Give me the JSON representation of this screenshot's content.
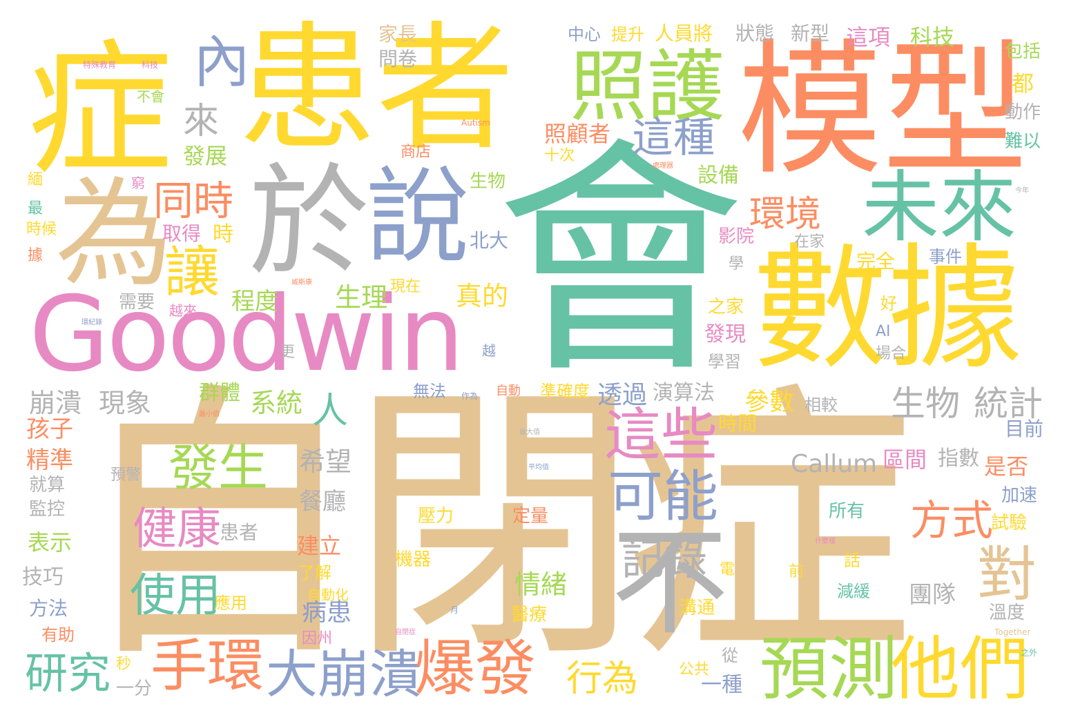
{
  "palette": {
    "green": "#66c2a5",
    "orange": "#fc8d62",
    "blue": "#8da0cb",
    "pink": "#e78ac3",
    "lime": "#a6d854",
    "yellow": "#ffd92f",
    "tan": "#e5c494",
    "gray": "#b3b3b3"
  },
  "words": [
    {
      "text": "自閉症",
      "color": "tan",
      "weight": 1.0
    },
    {
      "text": "會",
      "color": "green",
      "weight": 0.95
    },
    {
      "text": "模型",
      "color": "orange",
      "weight": 0.85
    },
    {
      "text": "患者",
      "color": "yellow",
      "weight": 0.85
    },
    {
      "text": "數據",
      "color": "yellow",
      "weight": 0.8
    },
    {
      "text": "症",
      "color": "yellow",
      "weight": 0.8
    },
    {
      "text": "Goodwin",
      "color": "pink",
      "weight": 0.75
    },
    {
      "text": "於",
      "color": "gray",
      "weight": 0.7
    },
    {
      "text": "說",
      "color": "blue",
      "weight": 0.7
    },
    {
      "text": "為",
      "color": "tan",
      "weight": 0.7
    },
    {
      "text": "不",
      "color": "gray",
      "weight": 0.7
    },
    {
      "text": "照護",
      "color": "lime",
      "weight": 0.6
    },
    {
      "text": "未來",
      "color": "green",
      "weight": 0.6
    },
    {
      "text": "預測",
      "color": "lime",
      "weight": 0.55
    },
    {
      "text": "他們",
      "color": "yellow",
      "weight": 0.55
    },
    {
      "text": "大崩潰",
      "color": "blue",
      "weight": 0.5
    },
    {
      "text": "爆發",
      "color": "orange",
      "weight": 0.5
    },
    {
      "text": "手環",
      "color": "orange",
      "weight": 0.5
    },
    {
      "text": "這些",
      "color": "pink",
      "weight": 0.5
    },
    {
      "text": "可能",
      "color": "blue",
      "weight": 0.5
    },
    {
      "text": "內",
      "color": "blue",
      "weight": 0.45
    },
    {
      "text": "發生",
      "color": "lime",
      "weight": 0.45
    },
    {
      "text": "健康",
      "color": "pink",
      "weight": 0.45
    },
    {
      "text": "使用",
      "color": "green",
      "weight": 0.45
    },
    {
      "text": "對",
      "color": "tan",
      "weight": 0.45
    },
    {
      "text": "讓",
      "color": "yellow",
      "weight": 0.45
    },
    {
      "text": "研究",
      "color": "green",
      "weight": 0.4
    },
    {
      "text": "記錄",
      "color": "gray",
      "weight": 0.4
    },
    {
      "text": "方式",
      "color": "orange",
      "weight": 0.4
    },
    {
      "text": "環境",
      "color": "orange",
      "weight": 0.4
    },
    {
      "text": "同時",
      "color": "orange",
      "weight": 0.38
    },
    {
      "text": "這種",
      "color": "blue",
      "weight": 0.38
    },
    {
      "text": "生物",
      "color": "gray",
      "weight": 0.38
    },
    {
      "text": "統計",
      "color": "gray",
      "weight": 0.38
    },
    {
      "text": "人",
      "color": "green",
      "weight": 0.35
    },
    {
      "text": "行為",
      "color": "yellow",
      "weight": 0.33
    },
    {
      "text": "來",
      "color": "gray",
      "weight": 0.33
    },
    {
      "text": "崩潰",
      "color": "gray",
      "weight": 0.3
    },
    {
      "text": "現象",
      "color": "gray",
      "weight": 0.3
    },
    {
      "text": "Callum",
      "color": "gray",
      "weight": 0.3
    },
    {
      "text": "希望",
      "color": "gray",
      "weight": 0.3
    },
    {
      "text": "參數",
      "color": "yellow",
      "weight": 0.3
    },
    {
      "text": "系統",
      "color": "lime",
      "weight": 0.3
    },
    {
      "text": "透過",
      "color": "blue",
      "weight": 0.3
    },
    {
      "text": "生理",
      "color": "lime",
      "weight": 0.3
    },
    {
      "text": "真的",
      "color": "yellow",
      "weight": 0.3
    },
    {
      "text": "情緒",
      "color": "lime",
      "weight": 0.3
    },
    {
      "text": "病患",
      "color": "blue",
      "weight": 0.3
    },
    {
      "text": "團隊",
      "color": "gray",
      "weight": 0.28
    },
    {
      "text": "區間",
      "color": "pink",
      "weight": 0.28
    },
    {
      "text": "照顧者",
      "color": "orange",
      "weight": 0.28
    },
    {
      "text": "程度",
      "color": "lime",
      "weight": 0.28
    },
    {
      "text": "孩子",
      "color": "orange",
      "weight": 0.28
    },
    {
      "text": "精準",
      "color": "orange",
      "weight": 0.28
    },
    {
      "text": "群體",
      "color": "lime",
      "weight": 0.26
    },
    {
      "text": "演算法",
      "color": "gray",
      "weight": 0.26
    },
    {
      "text": "發展",
      "color": "lime",
      "weight": 0.26
    },
    {
      "text": "設備",
      "color": "lime",
      "weight": 0.26
    },
    {
      "text": "發現",
      "color": "pink",
      "weight": 0.26
    },
    {
      "text": "餐廳",
      "color": "gray",
      "weight": 0.26
    },
    {
      "text": "建立",
      "color": "orange",
      "weight": 0.26
    },
    {
      "text": "表示",
      "color": "lime",
      "weight": 0.26
    },
    {
      "text": "技巧",
      "color": "gray",
      "weight": 0.26
    },
    {
      "text": "方法",
      "color": "blue",
      "weight": 0.24
    },
    {
      "text": "指數",
      "color": "gray",
      "weight": 0.24
    },
    {
      "text": "時間",
      "color": "yellow",
      "weight": 0.24
    },
    {
      "text": "目前",
      "color": "blue",
      "weight": 0.24
    },
    {
      "text": "是否",
      "color": "orange",
      "weight": 0.24
    },
    {
      "text": "這項",
      "color": "pink",
      "weight": 0.24
    },
    {
      "text": "科技",
      "color": "lime",
      "weight": 0.24
    },
    {
      "text": "狀態",
      "color": "gray",
      "weight": 0.22
    },
    {
      "text": "新型",
      "color": "gray",
      "weight": 0.22
    },
    {
      "text": "人員將",
      "color": "yellow",
      "weight": 0.22
    },
    {
      "text": "提升",
      "color": "yellow",
      "weight": 0.22
    },
    {
      "text": "中心",
      "color": "blue",
      "weight": 0.22
    },
    {
      "text": "家長",
      "color": "tan",
      "weight": 0.22
    },
    {
      "text": "問卷",
      "color": "gray",
      "weight": 0.22
    },
    {
      "text": "包括",
      "color": "lime",
      "weight": 0.22
    },
    {
      "text": "都",
      "color": "yellow",
      "weight": 0.22
    },
    {
      "text": "動作",
      "color": "gray",
      "weight": 0.22
    },
    {
      "text": "難以",
      "color": "green",
      "weight": 0.22
    },
    {
      "text": "取得",
      "color": "pink",
      "weight": 0.22
    },
    {
      "text": "時",
      "color": "yellow",
      "weight": 0.22
    },
    {
      "text": "北大",
      "color": "blue",
      "weight": 0.22
    },
    {
      "text": "完全",
      "color": "yellow",
      "weight": 0.22
    },
    {
      "text": "影院",
      "color": "pink",
      "weight": 0.22
    },
    {
      "text": "在家",
      "color": "gray",
      "weight": 0.2
    },
    {
      "text": "事件",
      "color": "blue",
      "weight": 0.2
    },
    {
      "text": "之家",
      "color": "yellow",
      "weight": 0.2
    },
    {
      "text": "學習",
      "color": "gray",
      "weight": 0.2
    },
    {
      "text": "準確度",
      "color": "yellow",
      "weight": 0.2
    },
    {
      "text": "相較",
      "color": "gray",
      "weight": 0.2
    },
    {
      "text": "無法",
      "color": "blue",
      "weight": 0.2
    },
    {
      "text": "自動",
      "color": "orange",
      "weight": 0.2
    },
    {
      "text": "壓力",
      "color": "yellow",
      "weight": 0.2
    },
    {
      "text": "定量",
      "color": "orange",
      "weight": 0.2
    },
    {
      "text": "機器",
      "color": "yellow",
      "weight": 0.2
    },
    {
      "text": "所有",
      "color": "green",
      "weight": 0.2
    },
    {
      "text": "試驗",
      "color": "yellow",
      "weight": 0.2
    },
    {
      "text": "加速",
      "color": "blue",
      "weight": 0.2
    },
    {
      "text": "患者",
      "color": "gray",
      "weight": 0.2
    },
    {
      "text": "預警",
      "color": "gray",
      "weight": 0.18
    },
    {
      "text": "就算",
      "color": "gray",
      "weight": 0.18
    },
    {
      "text": "監控",
      "color": "gray",
      "weight": 0.18
    },
    {
      "text": "需要",
      "color": "gray",
      "weight": 0.18
    },
    {
      "text": "越來",
      "color": "pink",
      "weight": 0.18
    },
    {
      "text": "現在",
      "color": "yellow",
      "weight": 0.18
    },
    {
      "text": "好",
      "color": "yellow",
      "weight": 0.18
    },
    {
      "text": "AI",
      "color": "blue",
      "weight": 0.18
    },
    {
      "text": "場合",
      "color": "gray",
      "weight": 0.18
    },
    {
      "text": "溝通",
      "color": "yellow",
      "weight": 0.18
    },
    {
      "text": "醫療",
      "color": "yellow",
      "weight": 0.18
    },
    {
      "text": "了解",
      "color": "yellow",
      "weight": 0.18
    },
    {
      "text": "自動化",
      "color": "yellow",
      "weight": 0.18
    },
    {
      "text": "因州",
      "color": "pink",
      "weight": 0.18
    },
    {
      "text": "應用",
      "color": "yellow",
      "weight": 0.18
    },
    {
      "text": "溫度",
      "color": "gray",
      "weight": 0.18
    },
    {
      "text": "減緩",
      "color": "green",
      "weight": 0.18
    },
    {
      "text": "話",
      "color": "yellow",
      "weight": 0.18
    },
    {
      "text": "前",
      "color": "yellow",
      "weight": 0.18
    },
    {
      "text": "一種",
      "color": "blue",
      "weight": 0.18
    },
    {
      "text": "公共",
      "color": "yellow",
      "weight": 0.18
    },
    {
      "text": "從",
      "color": "gray",
      "weight": 0.18
    },
    {
      "text": "電",
      "color": "yellow",
      "weight": 0.16
    },
    {
      "text": "有助",
      "color": "orange",
      "weight": 0.16
    },
    {
      "text": "一分",
      "color": "gray",
      "weight": 0.16
    },
    {
      "text": "秒",
      "color": "yellow",
      "weight": 0.14
    },
    {
      "text": "生物",
      "color": "lime",
      "weight": 0.16
    },
    {
      "text": "十次",
      "color": "yellow",
      "weight": 0.16
    },
    {
      "text": "商店",
      "color": "orange",
      "weight": 0.14
    },
    {
      "text": "學",
      "color": "gray",
      "weight": 0.14
    },
    {
      "text": "不會",
      "color": "lime",
      "weight": 0.14
    },
    {
      "text": "時候",
      "color": "yellow",
      "weight": 0.14
    },
    {
      "text": "據",
      "color": "orange",
      "weight": 0.14
    },
    {
      "text": "最",
      "color": "green",
      "weight": 0.14
    },
    {
      "text": "緬",
      "color": "yellow",
      "weight": 0.14
    },
    {
      "text": "窮",
      "color": "pink",
      "weight": 0.14
    },
    {
      "text": "更",
      "color": "gray",
      "weight": 0.14
    },
    {
      "text": "越",
      "color": "blue",
      "weight": 0.14
    },
    {
      "text": "特殊教育",
      "color": "pink",
      "weight": 0.08
    },
    {
      "text": "科技",
      "color": "pink",
      "weight": 0.08
    },
    {
      "text": "Autism",
      "color": "orange",
      "weight": 0.08
    },
    {
      "text": "Together",
      "color": "tan",
      "weight": 0.08
    },
    {
      "text": "最小值",
      "color": "orange",
      "weight": 0.07
    },
    {
      "text": "最大值",
      "color": "gray",
      "weight": 0.07
    },
    {
      "text": "平均值",
      "color": "blue",
      "weight": 0.07
    },
    {
      "text": "環紀錄",
      "color": "blue",
      "weight": 0.07
    },
    {
      "text": "自閉症",
      "color": "pink",
      "weight": 0.07
    },
    {
      "text": "威斯康",
      "color": "orange",
      "weight": 0.07
    },
    {
      "text": "什麼樣",
      "color": "pink",
      "weight": 0.07
    },
    {
      "text": "處理器",
      "color": "orange",
      "weight": 0.07
    },
    {
      "text": "作為",
      "color": "blue",
      "weight": 0.07
    },
    {
      "text": "月",
      "color": "blue",
      "weight": 0.07
    },
    {
      "text": "今年",
      "color": "gray",
      "weight": 0.07
    },
    {
      "text": "之外",
      "color": "green",
      "weight": 0.07
    }
  ]
}
